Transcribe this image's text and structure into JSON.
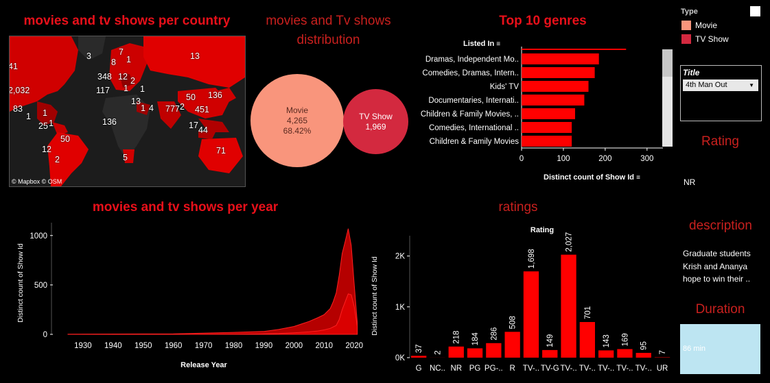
{
  "map_panel": {
    "title": "movies and tv shows per country",
    "credits": "© Mapbox  © OSM",
    "labels": [
      "41",
      "3",
      "7",
      "1",
      "8",
      "13",
      "2,032",
      "348",
      "12",
      "117",
      "1",
      "2",
      "1",
      "136",
      "50",
      "83",
      "13",
      "1",
      "4",
      "777",
      "2",
      "451",
      "1",
      "1",
      "25",
      "1",
      "136",
      "17",
      "44",
      "12",
      "50",
      "2",
      "5",
      "71"
    ]
  },
  "distribution": {
    "title_line1": "movies and Tv shows",
    "title_line2": "distribution",
    "movie": {
      "label": "Movie",
      "count": "4,265",
      "percent": "68.42%",
      "color": "#f9957c"
    },
    "tvshow": {
      "label": "TV Show",
      "count": "1,969",
      "color": "#d3293f"
    }
  },
  "genres": {
    "title": "Top 10 genres",
    "header": "Listed In",
    "xlabel": "Distinct count of Show Id"
  },
  "legend": {
    "title": "Type",
    "items": [
      {
        "label": "Movie",
        "color": "#f9957c"
      },
      {
        "label": "TV Show",
        "color": "#d3293f"
      }
    ]
  },
  "filter": {
    "title": "Title",
    "selected": "4th Man Out"
  },
  "rating_panel": {
    "title": "Rating",
    "value": "NR"
  },
  "description_panel": {
    "title": "description",
    "text": [
      "Graduate students",
      "Krish and Ananya",
      "hope to win their .."
    ]
  },
  "duration_panel": {
    "title": "Duration",
    "value": "86 min"
  },
  "year_panel": {
    "title": "movies and tv shows per year",
    "xlabel": "Release Year",
    "ylabel": "Distinct count of Show Id"
  },
  "ratings_panel": {
    "title": "ratings",
    "header": "Rating",
    "ylabel": "Distinct count of Show Id"
  },
  "chart_data": [
    {
      "type": "bar",
      "orientation": "horizontal",
      "title": "Top 10 genres",
      "categories": [
        "Dramas, Independent Mo..",
        "Comedies, Dramas, Intern..",
        "Kids' TV",
        "Documentaries, Internati..",
        "Children & Family Movies, ..",
        "Comedies, International ..",
        "Children & Family Movies"
      ],
      "values": [
        185,
        175,
        160,
        150,
        128,
        120,
        120
      ],
      "partial_top_value": 250,
      "xlabel": "Distinct count of Show Id",
      "xticks": [
        0,
        100,
        200,
        300
      ],
      "xlim": [
        0,
        320
      ],
      "color": "#ff0000"
    },
    {
      "type": "area",
      "title": "movies and tv shows per year",
      "xlabel": "Release Year",
      "ylabel": "Distinct count of Show Id",
      "xticks": [
        1930,
        1940,
        1950,
        1960,
        1970,
        1980,
        1990,
        2000,
        2010,
        2020
      ],
      "yticks": [
        0,
        500,
        1000
      ],
      "xlim": [
        1920,
        2022
      ],
      "ylim": [
        0,
        1130
      ],
      "series": [
        {
          "name": "Movie",
          "x": [
            1925,
            1960,
            1980,
            1990,
            1995,
            2000,
            2003,
            2005,
            2008,
            2010,
            2012,
            2013,
            2014,
            2015,
            2016,
            2017,
            2018,
            2019,
            2020,
            2021
          ],
          "values": [
            2,
            5,
            20,
            30,
            50,
            80,
            110,
            130,
            170,
            200,
            260,
            330,
            420,
            600,
            820,
            940,
            1070,
            900,
            500,
            120
          ]
        },
        {
          "name": "TV Show",
          "x": [
            1925,
            1960,
            1980,
            1990,
            1995,
            2000,
            2005,
            2008,
            2010,
            2012,
            2014,
            2015,
            2016,
            2017,
            2018,
            2019,
            2020,
            2021
          ],
          "values": [
            0,
            0,
            2,
            5,
            8,
            15,
            25,
            35,
            45,
            60,
            90,
            150,
            250,
            330,
            410,
            400,
            280,
            80
          ]
        }
      ]
    },
    {
      "type": "bar",
      "title": "ratings",
      "header": "Rating",
      "ylabel": "Distinct count of Show Id",
      "categories": [
        "G",
        "NC..",
        "NR",
        "PG",
        "PG-..",
        "R",
        "TV-..",
        "TV-G",
        "TV-..",
        "TV-..",
        "TV-..",
        "TV-..",
        "TV-..",
        "UR"
      ],
      "values": [
        37,
        2,
        218,
        184,
        286,
        508,
        1698,
        149,
        2027,
        701,
        143,
        169,
        95,
        7
      ],
      "value_labels": [
        "37",
        "2",
        "218",
        "184",
        "286",
        "508",
        "1,698",
        "149",
        "2,027",
        "701",
        "143",
        "169",
        "95",
        "7"
      ],
      "yticks": [
        "0K",
        "1K",
        "2K"
      ],
      "ylim": [
        0,
        2400
      ],
      "color": "#ff0000"
    }
  ]
}
